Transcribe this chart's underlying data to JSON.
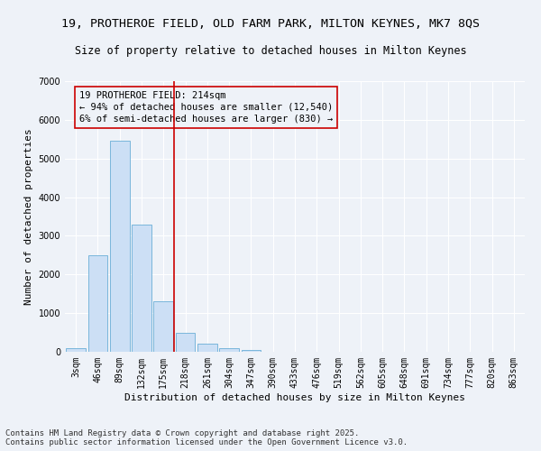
{
  "title_line1": "19, PROTHEROE FIELD, OLD FARM PARK, MILTON KEYNES, MK7 8QS",
  "title_line2": "Size of property relative to detached houses in Milton Keynes",
  "xlabel": "Distribution of detached houses by size in Milton Keynes",
  "ylabel": "Number of detached properties",
  "categories": [
    "3sqm",
    "46sqm",
    "89sqm",
    "132sqm",
    "175sqm",
    "218sqm",
    "261sqm",
    "304sqm",
    "347sqm",
    "390sqm",
    "433sqm",
    "476sqm",
    "519sqm",
    "562sqm",
    "605sqm",
    "648sqm",
    "691sqm",
    "734sqm",
    "777sqm",
    "820sqm",
    "863sqm"
  ],
  "values": [
    100,
    2500,
    5450,
    3300,
    1300,
    480,
    220,
    100,
    55,
    0,
    0,
    0,
    0,
    0,
    0,
    0,
    0,
    0,
    0,
    0,
    0
  ],
  "bar_color": "#ccdff5",
  "bar_edge_color": "#6aaed6",
  "vline_color": "#cc0000",
  "annotation_text": "19 PROTHEROE FIELD: 214sqm\n← 94% of detached houses are smaller (12,540)\n6% of semi-detached houses are larger (830) →",
  "annotation_box_color": "#cc0000",
  "ylim": [
    0,
    7000
  ],
  "yticks": [
    0,
    1000,
    2000,
    3000,
    4000,
    5000,
    6000,
    7000
  ],
  "background_color": "#eef2f8",
  "footer_line1": "Contains HM Land Registry data © Crown copyright and database right 2025.",
  "footer_line2": "Contains public sector information licensed under the Open Government Licence v3.0.",
  "title_fontsize": 9.5,
  "subtitle_fontsize": 8.5,
  "axis_label_fontsize": 8,
  "tick_fontsize": 7,
  "annotation_fontsize": 7.5,
  "footer_fontsize": 6.5
}
